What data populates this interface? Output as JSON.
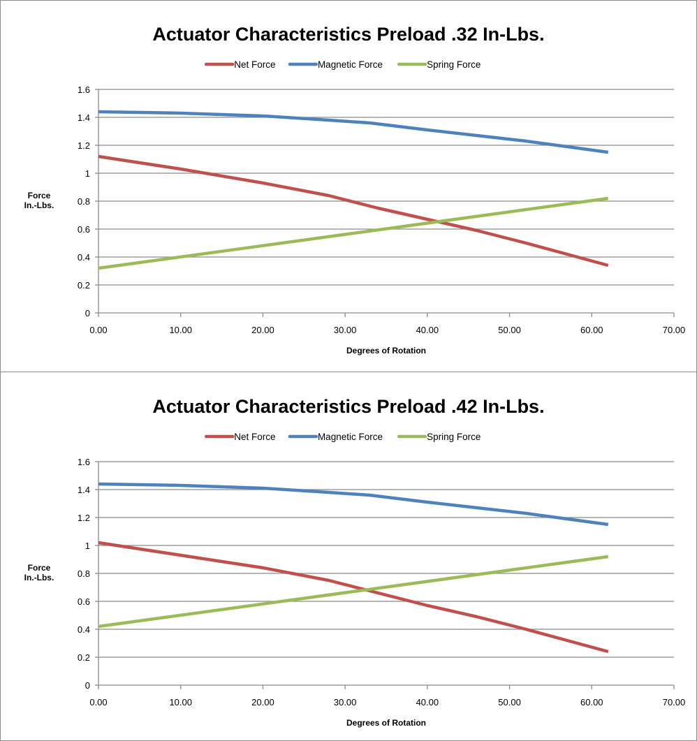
{
  "chart_data": [
    {
      "type": "line",
      "title": "Actuator Characteristics Preload .32 In-Lbs.",
      "xlabel": "Degrees of Rotation",
      "ylabel": "Force In.-Lbs.",
      "ylabel_lines": [
        "Force",
        "In.-Lbs."
      ],
      "xlim": [
        0,
        70
      ],
      "ylim": [
        0,
        1.6
      ],
      "xticks": [
        "0.00",
        "10.00",
        "20.00",
        "30.00",
        "40.00",
        "50.00",
        "60.00",
        "70.00"
      ],
      "yticks": [
        "0",
        "0.2",
        "0.4",
        "0.6",
        "0.8",
        "1",
        "1.2",
        "1.4",
        "1.6"
      ],
      "grid": "horizontal",
      "legend_position": "top",
      "series": [
        {
          "name": "Net Force",
          "color": "#c0504d",
          "x": [
            0,
            10,
            20,
            28,
            34,
            40,
            46,
            52,
            57,
            62
          ],
          "y": [
            1.12,
            1.03,
            0.93,
            0.84,
            0.75,
            0.67,
            0.59,
            0.5,
            0.42,
            0.34
          ]
        },
        {
          "name": "Magnetic Force",
          "color": "#4f81bd",
          "x": [
            0,
            10,
            20,
            28,
            33,
            40,
            46,
            52,
            57,
            62
          ],
          "y": [
            1.44,
            1.43,
            1.41,
            1.38,
            1.36,
            1.31,
            1.27,
            1.23,
            1.19,
            1.15
          ]
        },
        {
          "name": "Spring Force",
          "color": "#9bbb59",
          "x": [
            0,
            62
          ],
          "y": [
            0.32,
            0.82
          ]
        }
      ]
    },
    {
      "type": "line",
      "title": "Actuator Characteristics Preload .42 In-Lbs.",
      "xlabel": "Degrees of Rotation",
      "ylabel": "Force In.-Lbs.",
      "ylabel_lines": [
        "Force",
        "In.-Lbs."
      ],
      "xlim": [
        0,
        70
      ],
      "ylim": [
        0,
        1.6
      ],
      "xticks": [
        "0.00",
        "10.00",
        "20.00",
        "30.00",
        "40.00",
        "50.00",
        "60.00",
        "70.00"
      ],
      "yticks": [
        "0",
        "0.2",
        "0.4",
        "0.6",
        "0.8",
        "1",
        "1.2",
        "1.4",
        "1.6"
      ],
      "grid": "horizontal",
      "legend_position": "top",
      "series": [
        {
          "name": "Net Force",
          "color": "#c0504d",
          "x": [
            0,
            10,
            20,
            28,
            34,
            40,
            46,
            52,
            57,
            62
          ],
          "y": [
            1.02,
            0.93,
            0.84,
            0.75,
            0.66,
            0.57,
            0.49,
            0.4,
            0.32,
            0.24
          ]
        },
        {
          "name": "Magnetic Force",
          "color": "#4f81bd",
          "x": [
            0,
            10,
            20,
            28,
            33,
            40,
            46,
            52,
            57,
            62
          ],
          "y": [
            1.44,
            1.43,
            1.41,
            1.38,
            1.36,
            1.31,
            1.27,
            1.23,
            1.19,
            1.15
          ]
        },
        {
          "name": "Spring Force",
          "color": "#9bbb59",
          "x": [
            0,
            62
          ],
          "y": [
            0.42,
            0.92
          ]
        }
      ]
    }
  ]
}
